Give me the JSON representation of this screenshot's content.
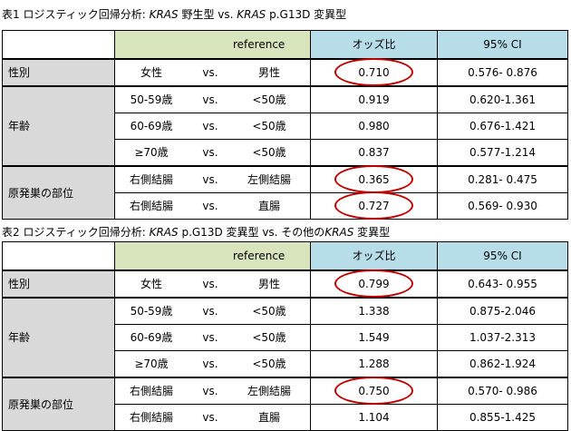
{
  "table1": {
    "caption_prefix": "表1  ロジスティック回帰分析: ",
    "caption_kras1": "KRAS",
    "caption_mid": " 野生型 vs. ",
    "caption_kras2": "KRAS",
    "caption_suffix": " p.G13D 変異型",
    "header": {
      "reference": "reference",
      "or": "オッズ比",
      "ci": "95% CI"
    },
    "rows": [
      {
        "group": "性別",
        "a": "女性",
        "vs": "vs.",
        "b": "男性",
        "or": "0.710",
        "ci": "0.576- 0.876",
        "circled": true
      },
      {
        "group": "年齢",
        "a": "50-59歳",
        "vs": "vs.",
        "b": "<50歳",
        "or": "0.919",
        "ci": "0.620-1.361",
        "circled": false
      },
      {
        "group": "",
        "a": "60-69歳",
        "vs": "vs.",
        "b": "<50歳",
        "or": "0.980",
        "ci": "0.676-1.421",
        "circled": false
      },
      {
        "group": "",
        "a": "≥70歳",
        "vs": "vs.",
        "b": "<50歳",
        "or": "0.837",
        "ci": "0.577-1.214",
        "circled": false
      },
      {
        "group": "原発巣の部位",
        "a": "右側結腸",
        "vs": "vs.",
        "b": "左側結腸",
        "or": "0.365",
        "ci": "0.281- 0.475",
        "circled": true
      },
      {
        "group": "",
        "a": "右側結腸",
        "vs": "vs.",
        "b": "直腸",
        "or": "0.727",
        "ci": "0.569- 0.930",
        "circled": true
      }
    ]
  },
  "table2": {
    "caption_prefix": "表2  ロジスティック回帰分析: ",
    "caption_kras1": "KRAS",
    "caption_mid": " p.G13D 変異型 vs. その他の",
    "caption_kras2": "KRAS",
    "caption_suffix": " 変異型",
    "header": {
      "reference": "reference",
      "or": "オッズ比",
      "ci": "95% CI"
    },
    "rows": [
      {
        "group": "性別",
        "a": "女性",
        "vs": "vs.",
        "b": "男性",
        "or": "0.799",
        "ci": "0.643- 0.955",
        "circled": true
      },
      {
        "group": "年齢",
        "a": "50-59歳",
        "vs": "vs.",
        "b": "<50歳",
        "or": "1.338",
        "ci": "0.875-2.046",
        "circled": false
      },
      {
        "group": "",
        "a": "60-69歳",
        "vs": "vs.",
        "b": "<50歳",
        "or": "1.549",
        "ci": "1.037-2.313",
        "circled": false
      },
      {
        "group": "",
        "a": "≥70歳",
        "vs": "vs.",
        "b": "<50歳",
        "or": "1.288",
        "ci": "0.862-1.924",
        "circled": false
      },
      {
        "group": "原発巣の部位",
        "a": "右側結腸",
        "vs": "vs.",
        "b": "左側結腸",
        "or": "0.750",
        "ci": "0.570- 0.986",
        "circled": true
      },
      {
        "group": "",
        "a": "右側結腸",
        "vs": "vs.",
        "b": "直腸",
        "or": "1.104",
        "ci": "0.855-1.425",
        "circled": false
      }
    ]
  }
}
